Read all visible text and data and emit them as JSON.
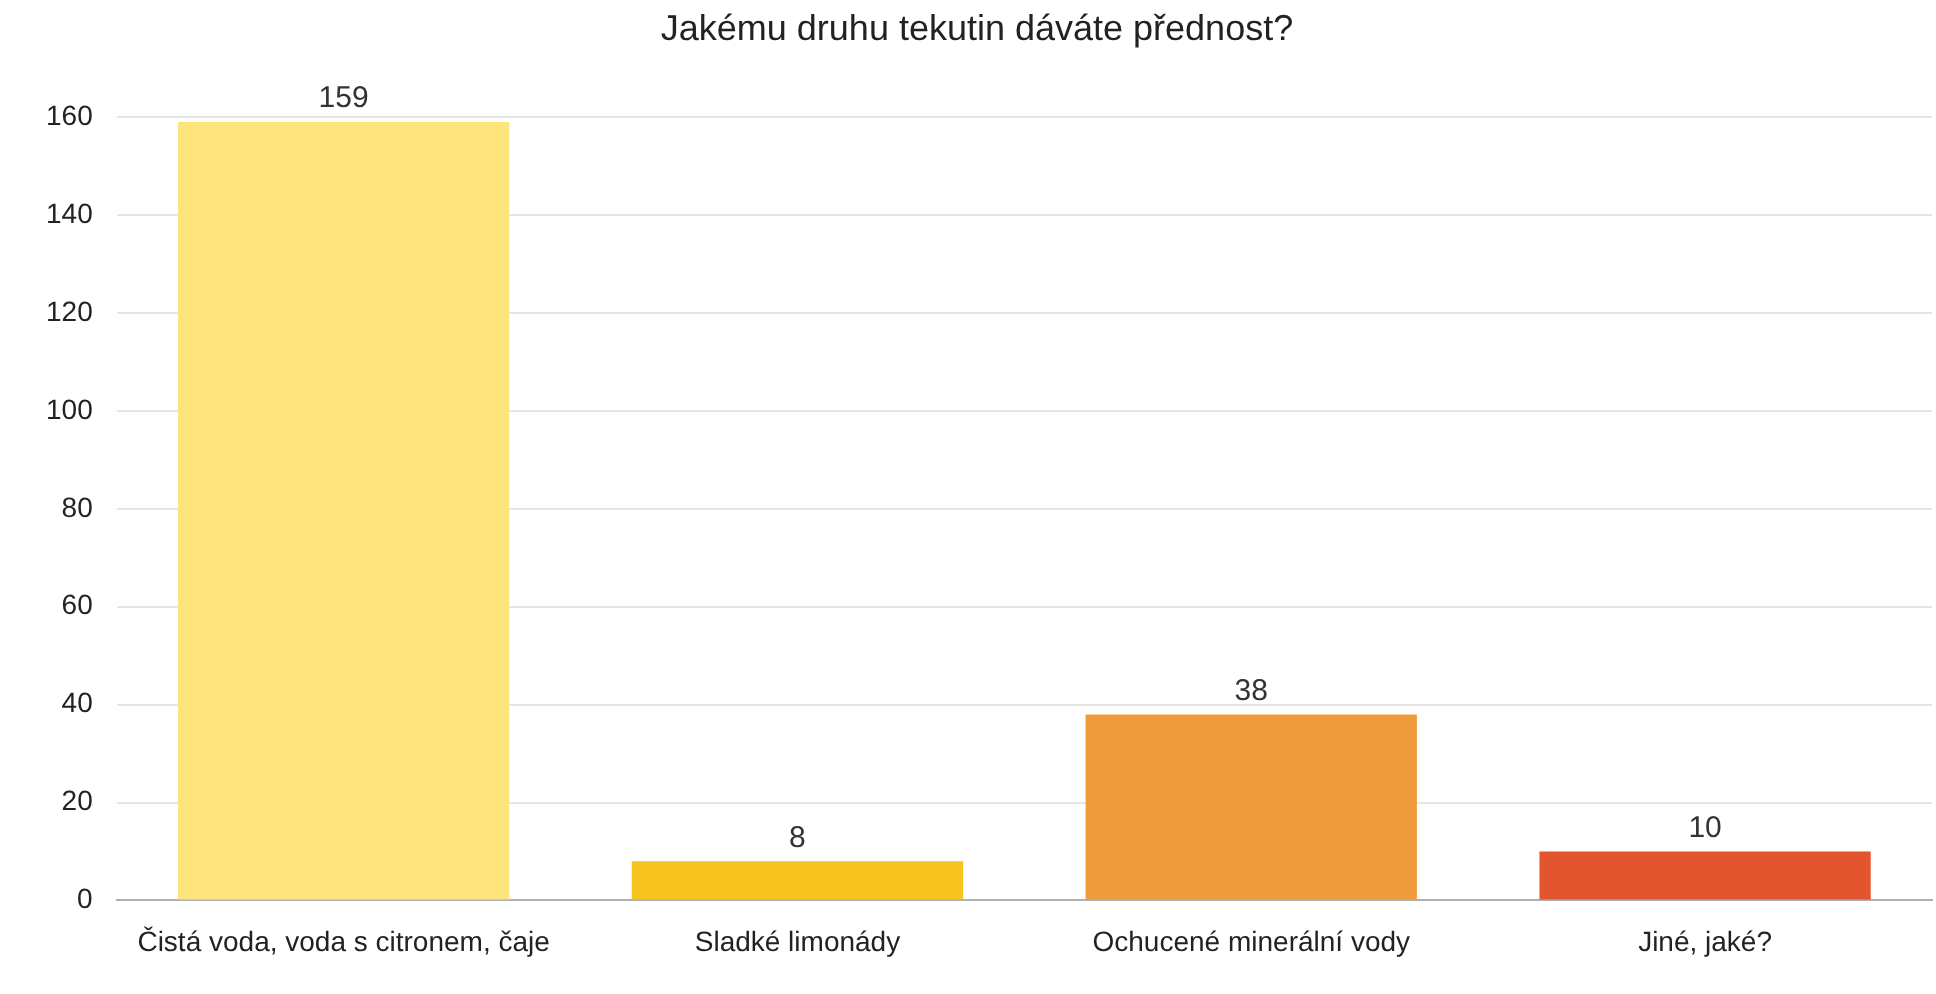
{
  "chart_data": {
    "type": "bar",
    "title": "Jakému druhu tekutin dáváte přednost?",
    "categories": [
      "Čistá voda, voda s citronem, čaje",
      "Sladké limonády",
      "Ochucené minerální vody",
      "Jiné, jaké?"
    ],
    "values": [
      159,
      8,
      38,
      10
    ],
    "colors": [
      "#fde47c",
      "#f7c31f",
      "#ee9b3c",
      "#e2552f"
    ],
    "ylim": [
      0,
      160
    ],
    "yticks": [
      0,
      20,
      40,
      60,
      80,
      100,
      120,
      140,
      160
    ],
    "grid": "y",
    "data_labels": true,
    "legend": false
  }
}
